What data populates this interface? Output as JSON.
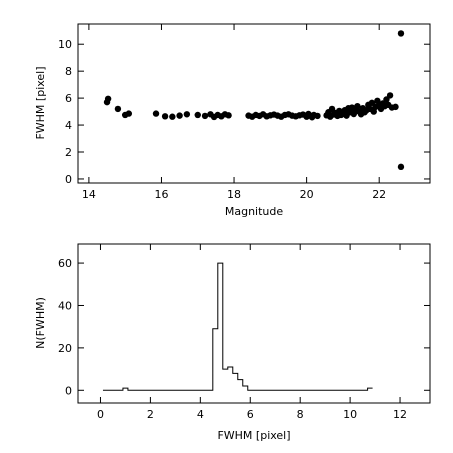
{
  "chart_data": [
    {
      "type": "scatter",
      "xlabel": "Magnitude",
      "ylabel": "FWHM [pixel]",
      "xlim": [
        13.7,
        23.4
      ],
      "ylim": [
        -0.3,
        11.5
      ],
      "xticks": [
        14,
        16,
        18,
        20,
        22
      ],
      "yticks": [
        0,
        2,
        4,
        6,
        8,
        10
      ],
      "points": [
        [
          14.5,
          5.7
        ],
        [
          14.53,
          5.95
        ],
        [
          14.8,
          5.2
        ],
        [
          15.0,
          4.75
        ],
        [
          15.1,
          4.85
        ],
        [
          15.85,
          4.85
        ],
        [
          16.1,
          4.65
        ],
        [
          16.3,
          4.62
        ],
        [
          16.5,
          4.7
        ],
        [
          16.7,
          4.8
        ],
        [
          17.0,
          4.75
        ],
        [
          17.2,
          4.68
        ],
        [
          17.35,
          4.8
        ],
        [
          17.45,
          4.6
        ],
        [
          17.55,
          4.75
        ],
        [
          17.65,
          4.65
        ],
        [
          17.75,
          4.8
        ],
        [
          17.85,
          4.72
        ],
        [
          18.4,
          4.7
        ],
        [
          18.5,
          4.62
        ],
        [
          18.6,
          4.75
        ],
        [
          18.7,
          4.68
        ],
        [
          18.8,
          4.8
        ],
        [
          18.9,
          4.65
        ],
        [
          19.0,
          4.72
        ],
        [
          19.1,
          4.78
        ],
        [
          19.2,
          4.7
        ],
        [
          19.3,
          4.62
        ],
        [
          19.4,
          4.75
        ],
        [
          19.5,
          4.8
        ],
        [
          19.6,
          4.7
        ],
        [
          19.7,
          4.65
        ],
        [
          19.8,
          4.72
        ],
        [
          19.9,
          4.78
        ],
        [
          20.0,
          4.62
        ],
        [
          20.05,
          4.82
        ],
        [
          20.1,
          4.7
        ],
        [
          20.15,
          4.58
        ],
        [
          20.2,
          4.75
        ],
        [
          20.3,
          4.68
        ],
        [
          20.55,
          4.72
        ],
        [
          20.6,
          4.95
        ],
        [
          20.65,
          4.62
        ],
        [
          20.7,
          5.2
        ],
        [
          20.75,
          4.78
        ],
        [
          20.8,
          4.9
        ],
        [
          20.85,
          4.68
        ],
        [
          20.9,
          5.05
        ],
        [
          20.95,
          4.75
        ],
        [
          21.0,
          4.85
        ],
        [
          21.05,
          5.1
        ],
        [
          21.1,
          4.7
        ],
        [
          21.15,
          5.25
        ],
        [
          21.2,
          4.95
        ],
        [
          21.25,
          5.3
        ],
        [
          21.3,
          4.82
        ],
        [
          21.35,
          5.15
        ],
        [
          21.4,
          5.4
        ],
        [
          21.45,
          5.0
        ],
        [
          21.5,
          4.8
        ],
        [
          21.55,
          5.25
        ],
        [
          21.6,
          4.95
        ],
        [
          21.65,
          5.1
        ],
        [
          21.7,
          5.5
        ],
        [
          21.75,
          5.2
        ],
        [
          21.8,
          5.65
        ],
        [
          21.85,
          5.0
        ],
        [
          21.9,
          5.35
        ],
        [
          21.95,
          5.8
        ],
        [
          22.0,
          5.45
        ],
        [
          22.05,
          5.2
        ],
        [
          22.1,
          5.6
        ],
        [
          22.15,
          5.4
        ],
        [
          22.2,
          5.9
        ],
        [
          22.25,
          5.5
        ],
        [
          22.3,
          6.2
        ],
        [
          22.35,
          5.3
        ],
        [
          22.45,
          5.35
        ],
        [
          22.6,
          10.8
        ],
        [
          22.6,
          0.9
        ]
      ]
    },
    {
      "type": "histogram",
      "xlabel": "FWHM [pixel]",
      "ylabel": "N(FWHM)",
      "xlim": [
        -0.9,
        13.2
      ],
      "ylim": [
        -6,
        69
      ],
      "xticks": [
        0,
        2,
        4,
        6,
        8,
        10,
        12
      ],
      "yticks": [
        0,
        20,
        40,
        60
      ],
      "bin_width": 0.2,
      "bins": [
        [
          0.1,
          0
        ],
        [
          0.9,
          1
        ],
        [
          1.1,
          0
        ],
        [
          4.5,
          29
        ],
        [
          4.7,
          60
        ],
        [
          4.9,
          10
        ],
        [
          5.1,
          11
        ],
        [
          5.3,
          8
        ],
        [
          5.5,
          5
        ],
        [
          5.7,
          2
        ],
        [
          5.9,
          0
        ],
        [
          10.7,
          1
        ]
      ],
      "hist_end": 10.9
    }
  ]
}
